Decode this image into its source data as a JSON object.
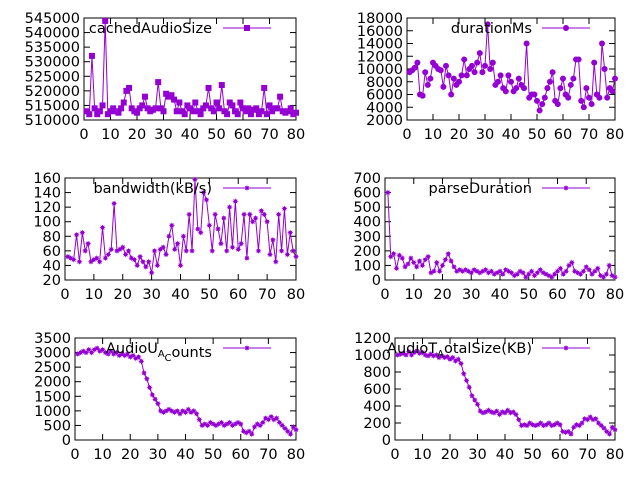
{
  "chart_data": [
    {
      "type": "line",
      "legend_position": "top-right",
      "legend_label": "cachedAudioSize",
      "legend_parts": [],
      "series_color": "#9400d3",
      "marker": "square",
      "xlim": [
        0,
        80
      ],
      "ylim": [
        510000,
        545000
      ],
      "x_ticks": [
        0,
        10,
        20,
        30,
        40,
        50,
        60,
        70,
        80
      ],
      "y_ticks": [
        510000,
        515000,
        520000,
        525000,
        530000,
        535000,
        540000,
        545000
      ],
      "x": [
        1,
        2,
        3,
        4,
        5,
        6,
        7,
        8,
        9,
        10,
        11,
        12,
        13,
        14,
        15,
        16,
        17,
        18,
        19,
        20,
        21,
        22,
        23,
        24,
        25,
        26,
        27,
        28,
        29,
        30,
        31,
        32,
        33,
        34,
        35,
        36,
        37,
        38,
        39,
        40,
        41,
        42,
        43,
        44,
        45,
        46,
        47,
        48,
        49,
        50,
        51,
        52,
        53,
        54,
        55,
        56,
        57,
        58,
        59,
        60,
        61,
        62,
        63,
        64,
        65,
        66,
        67,
        68,
        69,
        70,
        71,
        72,
        73,
        74,
        75,
        76,
        77,
        78,
        79,
        80
      ],
      "values": [
        513000,
        512000,
        532000,
        514000,
        512000,
        513000,
        515000,
        544000,
        512000,
        513000,
        514000,
        513000,
        512500,
        514000,
        516000,
        520000,
        521000,
        514000,
        513000,
        512500,
        514000,
        515000,
        518000,
        514000,
        513000,
        513500,
        514000,
        523000,
        514000,
        513000,
        519000,
        518000,
        518500,
        517000,
        513000,
        516000,
        513000,
        512000,
        515000,
        514000,
        513000,
        516000,
        513000,
        512000,
        514000,
        515000,
        521000,
        514000,
        513000,
        516000,
        514000,
        522000,
        513000,
        512000,
        516000,
        515000,
        513000,
        512000,
        516000,
        514000,
        513000,
        514000,
        512000,
        513500,
        514000,
        512000,
        513000,
        521000,
        512000,
        515000,
        513000,
        514000,
        514000,
        518000,
        513000,
        512500,
        513000,
        514000,
        512000,
        512500
      ]
    },
    {
      "type": "line",
      "legend_position": "top-right",
      "legend_label": "durationMs",
      "legend_parts": [],
      "series_color": "#9400d3",
      "marker": "circle",
      "xlim": [
        0,
        80
      ],
      "ylim": [
        2000,
        18000
      ],
      "x_ticks": [
        0,
        10,
        20,
        30,
        40,
        50,
        60,
        70,
        80
      ],
      "y_ticks": [
        2000,
        4000,
        6000,
        8000,
        10000,
        12000,
        14000,
        16000,
        18000
      ],
      "x": [
        1,
        2,
        3,
        4,
        5,
        6,
        7,
        8,
        9,
        10,
        11,
        12,
        13,
        14,
        15,
        16,
        17,
        18,
        19,
        20,
        21,
        22,
        23,
        24,
        25,
        26,
        27,
        28,
        29,
        30,
        31,
        32,
        33,
        34,
        35,
        36,
        37,
        38,
        39,
        40,
        41,
        42,
        43,
        44,
        45,
        46,
        47,
        48,
        49,
        50,
        51,
        52,
        53,
        54,
        55,
        56,
        57,
        58,
        59,
        60,
        61,
        62,
        63,
        64,
        65,
        66,
        67,
        68,
        69,
        70,
        71,
        72,
        73,
        74,
        75,
        76,
        77,
        78,
        79,
        80
      ],
      "values": [
        9500,
        9800,
        10200,
        11000,
        6000,
        5800,
        9500,
        7500,
        8500,
        11000,
        10500,
        10000,
        9800,
        7200,
        10500,
        9000,
        6000,
        8500,
        7500,
        8000,
        9000,
        11500,
        9000,
        10000,
        10500,
        9500,
        11000,
        12500,
        9500,
        10500,
        17000,
        10000,
        11000,
        7500,
        8000,
        9000,
        7000,
        6500,
        9000,
        8000,
        6500,
        7000,
        8500,
        7500,
        7000,
        14000,
        5500,
        6000,
        6000,
        5000,
        3500,
        4500,
        5500,
        7000,
        8000,
        9500,
        5000,
        4500,
        7000,
        8500,
        6000,
        5500,
        7500,
        8500,
        11500,
        11500,
        5000,
        4000,
        7000,
        5500,
        4500,
        11000,
        6000,
        5500,
        14000,
        10000,
        5500,
        7000,
        6500,
        8500
      ]
    },
    {
      "type": "line",
      "legend_position": "top-right",
      "legend_label": "bandwidth(kB/s)",
      "legend_parts": [],
      "series_color": "#9400d3",
      "marker": "star",
      "xlim": [
        0,
        80
      ],
      "ylim": [
        20,
        160
      ],
      "x_ticks": [
        0,
        10,
        20,
        30,
        40,
        50,
        60,
        70,
        80
      ],
      "y_ticks": [
        20,
        40,
        60,
        80,
        100,
        120,
        140,
        160
      ],
      "x": [
        1,
        2,
        3,
        4,
        5,
        6,
        7,
        8,
        9,
        10,
        11,
        12,
        13,
        14,
        15,
        16,
        17,
        18,
        19,
        20,
        21,
        22,
        23,
        24,
        25,
        26,
        27,
        28,
        29,
        30,
        31,
        32,
        33,
        34,
        35,
        36,
        37,
        38,
        39,
        40,
        41,
        42,
        43,
        44,
        45,
        46,
        47,
        48,
        49,
        50,
        51,
        52,
        53,
        54,
        55,
        56,
        57,
        58,
        59,
        60,
        61,
        62,
        63,
        64,
        65,
        66,
        67,
        68,
        69,
        70,
        71,
        72,
        73,
        74,
        75,
        76,
        77,
        78,
        79,
        80
      ],
      "values": [
        52,
        50,
        48,
        82,
        45,
        85,
        60,
        70,
        45,
        48,
        50,
        45,
        92,
        50,
        55,
        62,
        125,
        60,
        62,
        65,
        55,
        60,
        50,
        48,
        40,
        52,
        45,
        38,
        45,
        30,
        60,
        40,
        62,
        65,
        55,
        80,
        95,
        62,
        70,
        40,
        80,
        60,
        110,
        60,
        158,
        90,
        85,
        140,
        130,
        95,
        60,
        110,
        90,
        70,
        105,
        60,
        120,
        65,
        128,
        62,
        70,
        110,
        50,
        110,
        100,
        105,
        60,
        115,
        110,
        100,
        55,
        75,
        45,
        110,
        60,
        118,
        55,
        85,
        60,
        52
      ]
    },
    {
      "type": "line",
      "legend_position": "top-right",
      "legend_label": "parseDuration",
      "legend_parts": [],
      "series_color": "#9400d3",
      "marker": "star",
      "xlim": [
        0,
        80
      ],
      "ylim": [
        0,
        700
      ],
      "x_ticks": [
        0,
        10,
        20,
        30,
        40,
        50,
        60,
        70,
        80
      ],
      "y_ticks": [
        0,
        100,
        200,
        300,
        400,
        500,
        600,
        700
      ],
      "x": [
        1,
        2,
        3,
        4,
        5,
        6,
        7,
        8,
        9,
        10,
        11,
        12,
        13,
        14,
        15,
        16,
        17,
        18,
        19,
        20,
        21,
        22,
        23,
        24,
        25,
        26,
        27,
        28,
        29,
        30,
        31,
        32,
        33,
        34,
        35,
        36,
        37,
        38,
        39,
        40,
        41,
        42,
        43,
        44,
        45,
        46,
        47,
        48,
        49,
        50,
        51,
        52,
        53,
        54,
        55,
        56,
        57,
        58,
        59,
        60,
        61,
        62,
        63,
        64,
        65,
        66,
        67,
        68,
        69,
        70,
        71,
        72,
        73,
        74,
        75,
        76,
        77,
        78,
        79,
        80
      ],
      "values": [
        600,
        160,
        180,
        80,
        170,
        150,
        90,
        110,
        150,
        120,
        90,
        130,
        100,
        140,
        160,
        50,
        60,
        120,
        60,
        100,
        140,
        180,
        130,
        90,
        60,
        70,
        60,
        70,
        60,
        50,
        70,
        60,
        50,
        60,
        70,
        50,
        60,
        40,
        50,
        60,
        40,
        70,
        60,
        50,
        30,
        40,
        60,
        50,
        20,
        40,
        60,
        30,
        50,
        70,
        50,
        40,
        30,
        20,
        40,
        60,
        80,
        40,
        60,
        100,
        120,
        60,
        50,
        40,
        60,
        90,
        70,
        40,
        60,
        80,
        30,
        20,
        40,
        100,
        30,
        20
      ]
    },
    {
      "type": "line",
      "legend_position": "top-right",
      "legend_label": "Audio",
      "legend_parts": [
        "Audio",
        "U",
        "A",
        "C",
        "ounts"
      ],
      "series_color": "#9400d3",
      "marker": "star",
      "xlim": [
        0,
        80
      ],
      "ylim": [
        0,
        3500
      ],
      "x_ticks": [
        0,
        10,
        20,
        30,
        40,
        50,
        60,
        70,
        80
      ],
      "y_ticks": [
        0,
        500,
        1000,
        1500,
        2000,
        2500,
        3000,
        3500
      ],
      "x": [
        1,
        2,
        3,
        4,
        5,
        6,
        7,
        8,
        9,
        10,
        11,
        12,
        13,
        14,
        15,
        16,
        17,
        18,
        19,
        20,
        21,
        22,
        23,
        24,
        25,
        26,
        27,
        28,
        29,
        30,
        31,
        32,
        33,
        34,
        35,
        36,
        37,
        38,
        39,
        40,
        41,
        42,
        43,
        44,
        45,
        46,
        47,
        48,
        49,
        50,
        51,
        52,
        53,
        54,
        55,
        56,
        57,
        58,
        59,
        60,
        61,
        62,
        63,
        64,
        65,
        66,
        67,
        68,
        69,
        70,
        71,
        72,
        73,
        74,
        75,
        76,
        77,
        78,
        79,
        80
      ],
      "values": [
        2950,
        3000,
        3050,
        3000,
        3100,
        3000,
        3100,
        3150,
        3050,
        3100,
        3000,
        2950,
        3050,
        2950,
        3000,
        2900,
        2950,
        2900,
        2950,
        2850,
        2900,
        2800,
        2850,
        2700,
        2300,
        2100,
        1800,
        1550,
        1400,
        1250,
        1000,
        950,
        1000,
        1050,
        1000,
        950,
        1000,
        900,
        1000,
        950,
        1050,
        950,
        1000,
        900,
        700,
        500,
        550,
        500,
        600,
        550,
        500,
        550,
        600,
        500,
        550,
        600,
        500,
        550,
        600,
        550,
        300,
        250,
        300,
        200,
        450,
        550,
        500,
        600,
        750,
        700,
        800,
        700,
        750,
        600,
        500,
        400,
        300,
        200,
        450,
        350
      ]
    },
    {
      "type": "line",
      "legend_position": "top-right",
      "legend_label": "AudioTotalSize(KB)",
      "legend_parts": [
        "Audio",
        "T",
        "A",
        "otal",
        "S",
        "ize(KB)"
      ],
      "series_color": "#9400d3",
      "marker": "star",
      "xlim": [
        0,
        80
      ],
      "ylim": [
        0,
        1200
      ],
      "x_ticks": [
        0,
        10,
        20,
        30,
        40,
        50,
        60,
        70,
        80
      ],
      "y_ticks": [
        0,
        200,
        400,
        600,
        800,
        1000,
        1200
      ],
      "x": [
        1,
        2,
        3,
        4,
        5,
        6,
        7,
        8,
        9,
        10,
        11,
        12,
        13,
        14,
        15,
        16,
        17,
        18,
        19,
        20,
        21,
        22,
        23,
        24,
        25,
        26,
        27,
        28,
        29,
        30,
        31,
        32,
        33,
        34,
        35,
        36,
        37,
        38,
        39,
        40,
        41,
        42,
        43,
        44,
        45,
        46,
        47,
        48,
        49,
        50,
        51,
        52,
        53,
        54,
        55,
        56,
        57,
        58,
        59,
        60,
        61,
        62,
        63,
        64,
        65,
        66,
        67,
        68,
        69,
        70,
        71,
        72,
        73,
        74,
        75,
        76,
        77,
        78,
        79,
        80
      ],
      "values": [
        1000,
        1010,
        1020,
        1000,
        1040,
        1000,
        1030,
        1050,
        1020,
        1030,
        1000,
        990,
        1010,
        990,
        1000,
        970,
        990,
        970,
        980,
        950,
        970,
        930,
        950,
        900,
        780,
        700,
        620,
        520,
        470,
        420,
        340,
        320,
        330,
        350,
        330,
        320,
        340,
        300,
        330,
        320,
        350,
        320,
        330,
        300,
        240,
        170,
        180,
        170,
        200,
        180,
        170,
        180,
        200,
        170,
        180,
        200,
        170,
        180,
        200,
        180,
        100,
        90,
        100,
        70,
        150,
        180,
        170,
        200,
        250,
        240,
        270,
        240,
        250,
        200,
        170,
        140,
        100,
        70,
        150,
        120
      ]
    }
  ]
}
